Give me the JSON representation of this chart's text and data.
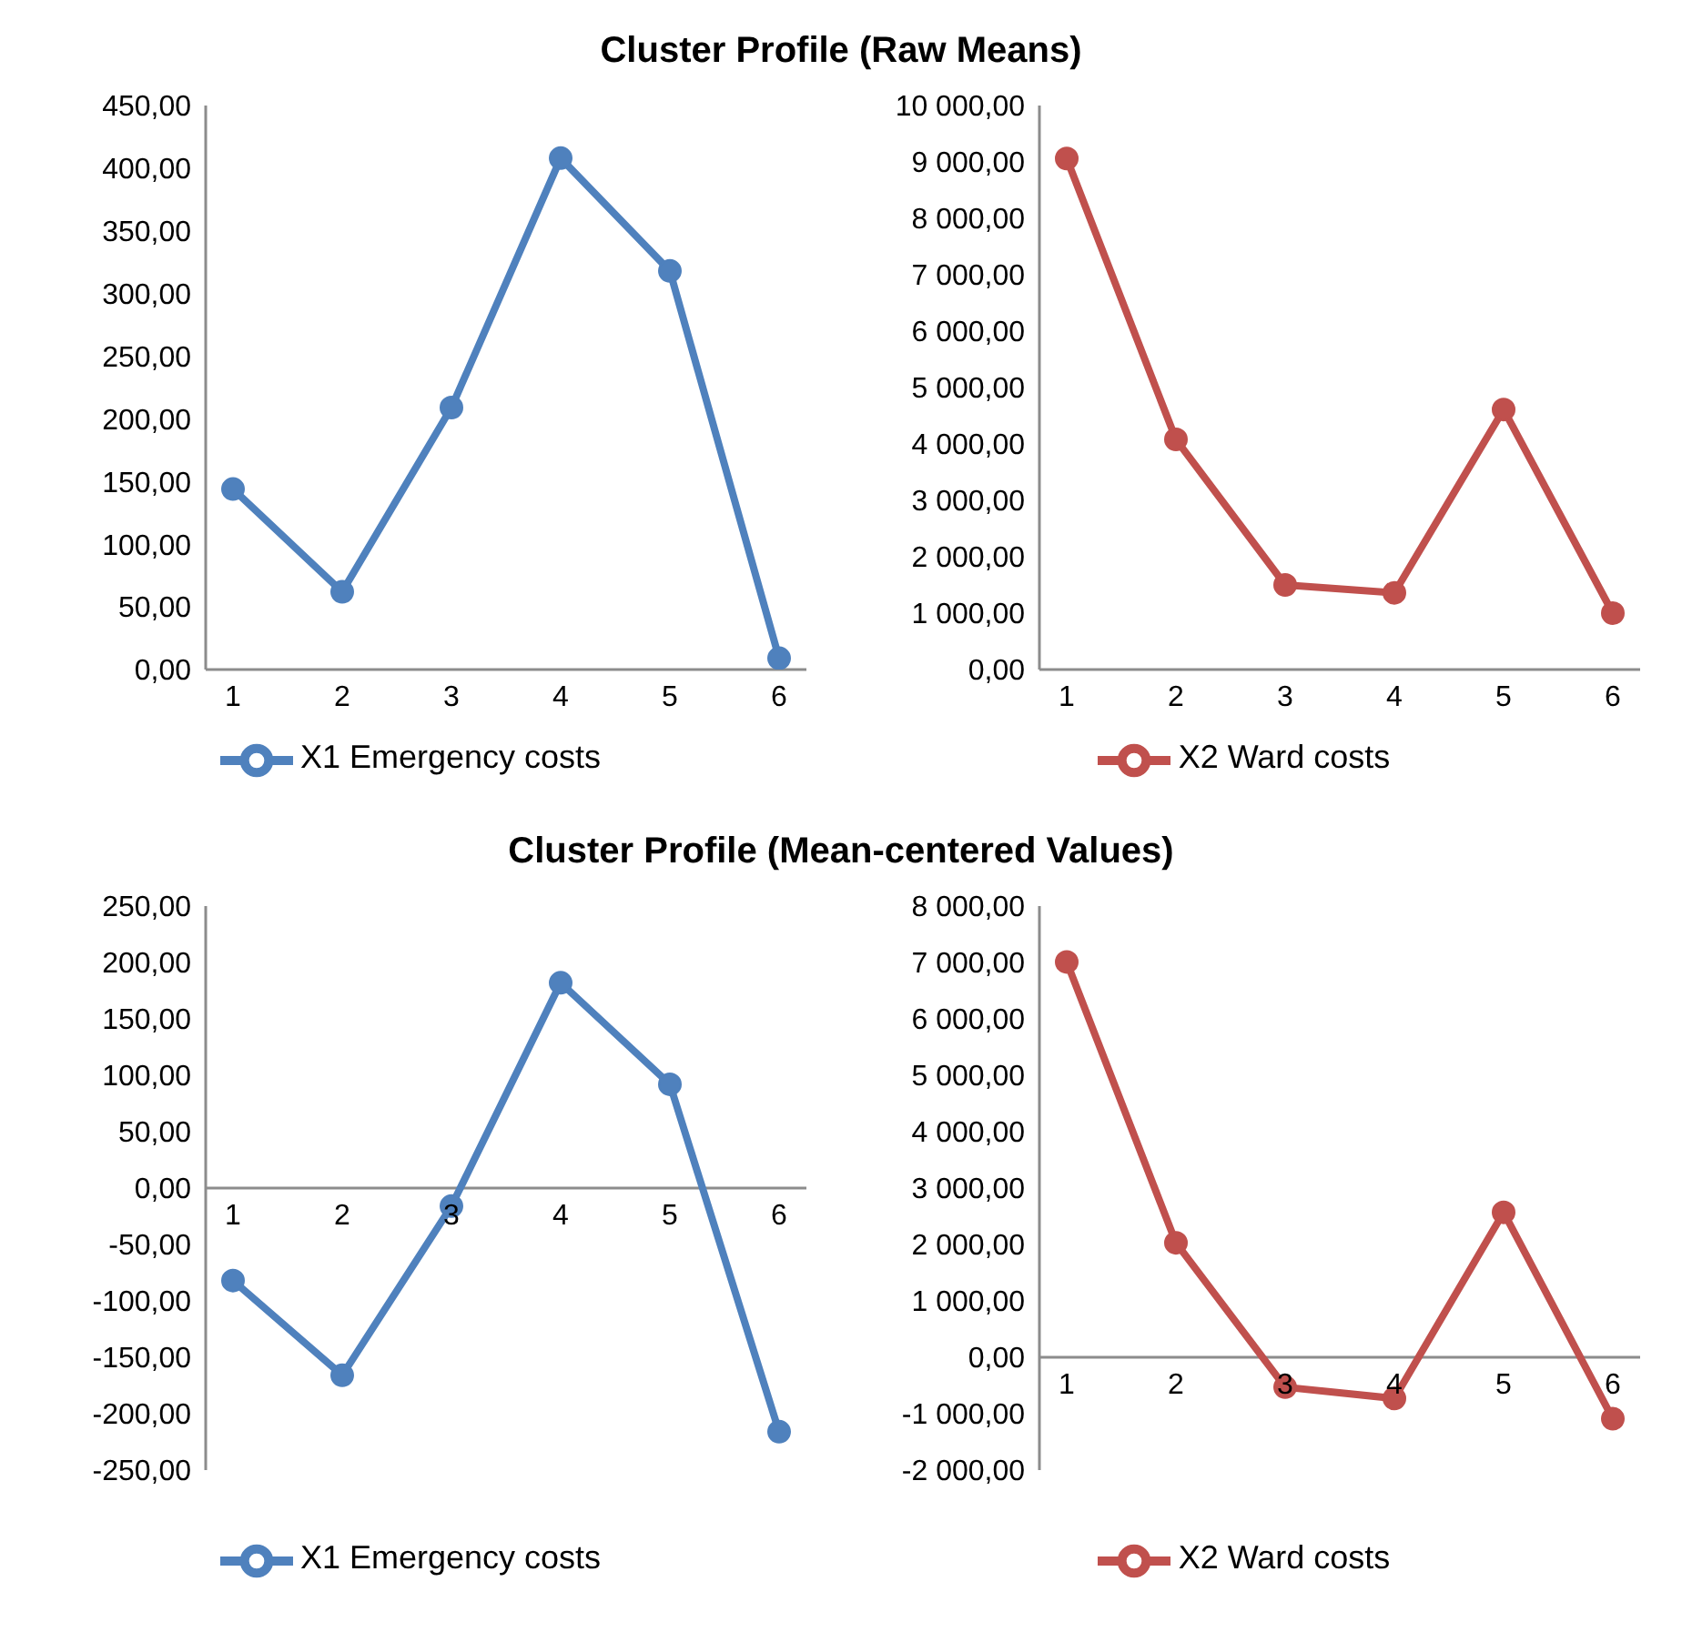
{
  "chart_data": [
    {
      "type": "line",
      "title": "Cluster Profile (Raw Means)",
      "categories": [
        "1",
        "2",
        "3",
        "4",
        "5",
        "6"
      ],
      "series": [
        {
          "name": "X1 Emergency costs",
          "color": "#4f81bd",
          "values": [
            144,
            62,
            209,
            408,
            318,
            9
          ]
        }
      ],
      "ylim": [
        0,
        450
      ],
      "yticks": [
        {
          "value": 0,
          "label": "0,00"
        },
        {
          "value": 50,
          "label": "50,00"
        },
        {
          "value": 100,
          "label": "100,00"
        },
        {
          "value": 150,
          "label": "150,00"
        },
        {
          "value": 200,
          "label": "200,00"
        },
        {
          "value": 250,
          "label": "250,00"
        },
        {
          "value": 300,
          "label": "300,00"
        },
        {
          "value": 350,
          "label": "350,00"
        },
        {
          "value": 400,
          "label": "400,00"
        },
        {
          "value": 450,
          "label": "450,00"
        }
      ],
      "grid": false,
      "legend": "bottom",
      "marker": "circle",
      "line_style": "solid"
    },
    {
      "type": "line",
      "categories": [
        "1",
        "2",
        "3",
        "4",
        "5",
        "6"
      ],
      "series": [
        {
          "name": "X2 Ward costs",
          "color": "#c0504d",
          "values": [
            9060,
            4080,
            1500,
            1360,
            4610,
            1000
          ]
        }
      ],
      "ylim": [
        0,
        10000
      ],
      "yticks": [
        {
          "value": 0,
          "label": "0,00"
        },
        {
          "value": 1000,
          "label": "1 000,00"
        },
        {
          "value": 2000,
          "label": "2 000,00"
        },
        {
          "value": 3000,
          "label": "3 000,00"
        },
        {
          "value": 4000,
          "label": "4 000,00"
        },
        {
          "value": 5000,
          "label": "5 000,00"
        },
        {
          "value": 6000,
          "label": "6 000,00"
        },
        {
          "value": 7000,
          "label": "7 000,00"
        },
        {
          "value": 8000,
          "label": "8 000,00"
        },
        {
          "value": 9000,
          "label": "9 000,00"
        },
        {
          "value": 10000,
          "label": "10 000,00"
        }
      ],
      "grid": false,
      "legend": "bottom",
      "marker": "circle",
      "line_style": "solid"
    },
    {
      "type": "line",
      "title": "Cluster Profile (Mean-centered Values)",
      "categories": [
        "1",
        "2",
        "3",
        "4",
        "5",
        "6"
      ],
      "series": [
        {
          "name": "X1 Emergency costs",
          "color": "#4f81bd",
          "values": [
            -82,
            -166,
            -16,
            182,
            92,
            -216
          ]
        }
      ],
      "ylim": [
        -250,
        250
      ],
      "yticks": [
        {
          "value": -250,
          "label": "-250,00"
        },
        {
          "value": -200,
          "label": "-200,00"
        },
        {
          "value": -150,
          "label": "-150,00"
        },
        {
          "value": -100,
          "label": "-100,00"
        },
        {
          "value": -50,
          "label": "-50,00"
        },
        {
          "value": 0,
          "label": "0,00"
        },
        {
          "value": 50,
          "label": "50,00"
        },
        {
          "value": 100,
          "label": "100,00"
        },
        {
          "value": 150,
          "label": "150,00"
        },
        {
          "value": 200,
          "label": "200,00"
        },
        {
          "value": 250,
          "label": "250,00"
        }
      ],
      "grid": false,
      "legend": "bottom",
      "marker": "circle",
      "line_style": "solid"
    },
    {
      "type": "line",
      "categories": [
        "1",
        "2",
        "3",
        "4",
        "5",
        "6"
      ],
      "series": [
        {
          "name": "X2 Ward costs",
          "color": "#c0504d",
          "values": [
            7010,
            2030,
            -530,
            -730,
            2570,
            -1090
          ]
        }
      ],
      "ylim": [
        -2000,
        8000
      ],
      "yticks": [
        {
          "value": -2000,
          "label": "-2 000,00"
        },
        {
          "value": -1000,
          "label": "-1 000,00"
        },
        {
          "value": 0,
          "label": "0,00"
        },
        {
          "value": 1000,
          "label": "1 000,00"
        },
        {
          "value": 2000,
          "label": "2 000,00"
        },
        {
          "value": 3000,
          "label": "3 000,00"
        },
        {
          "value": 4000,
          "label": "4 000,00"
        },
        {
          "value": 5000,
          "label": "5 000,00"
        },
        {
          "value": 6000,
          "label": "6 000,00"
        },
        {
          "value": 7000,
          "label": "7 000,00"
        },
        {
          "value": 8000,
          "label": "8 000,00"
        }
      ],
      "grid": false,
      "legend": "bottom",
      "marker": "circle",
      "line_style": "solid"
    }
  ]
}
